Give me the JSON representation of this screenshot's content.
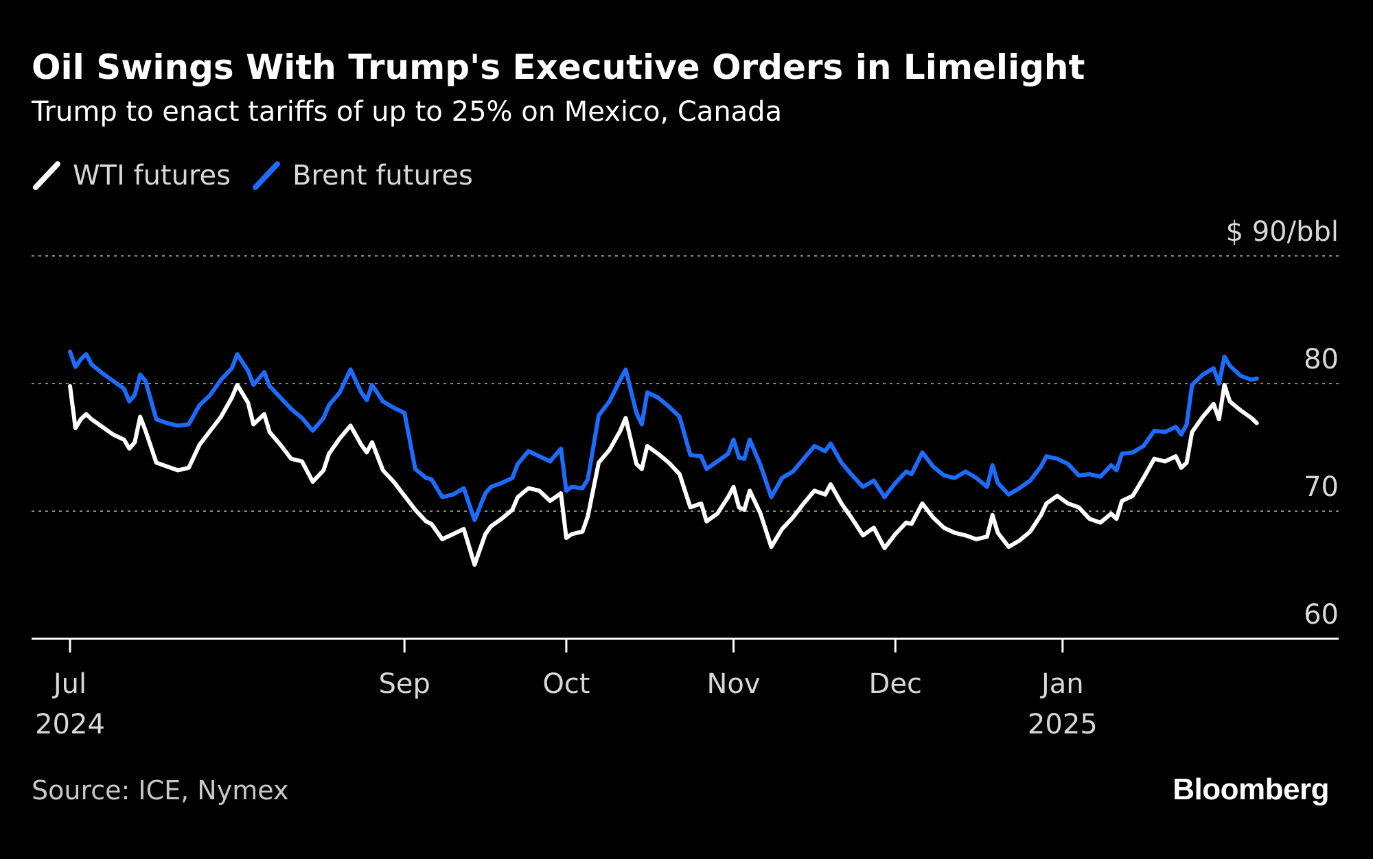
{
  "title": "Oil Swings With Trump's Executive Orders in Limelight",
  "subtitle": "Trump to enact tariffs of up to 25% on Mexico, Canada",
  "source": "Source: ICE, Nymex",
  "brand": "Bloomberg",
  "colors": {
    "background": "#000000",
    "wti": "#ffffff",
    "brent": "#1a6dff",
    "grid": "#888888",
    "axis": "#ffffff"
  },
  "chart_data": {
    "type": "line",
    "title": "Oil Swings With Trump's Executive Orders in Limelight",
    "subtitle": "Trump to enact tariffs of up to 25% on Mexico, Canada",
    "unit_label": "$ 90/bbl",
    "ylim": [
      60,
      90
    ],
    "y_ticks": [
      {
        "value": 90,
        "label": "$ 90/bbl"
      },
      {
        "value": 80,
        "label": "80"
      },
      {
        "value": 70,
        "label": "70"
      },
      {
        "value": 60,
        "label": "60"
      }
    ],
    "xlim": [
      "2024-07-01",
      "2025-02-11"
    ],
    "x_ticks": [
      {
        "date": "2024-07-01",
        "label": "Jul",
        "sublabel": "2024"
      },
      {
        "date": "2024-09-01",
        "label": "Sep",
        "sublabel": ""
      },
      {
        "date": "2024-10-01",
        "label": "Oct",
        "sublabel": ""
      },
      {
        "date": "2024-11-01",
        "label": "Nov",
        "sublabel": ""
      },
      {
        "date": "2024-12-01",
        "label": "Dec",
        "sublabel": ""
      },
      {
        "date": "2025-01-01",
        "label": "Jan",
        "sublabel": "2025"
      }
    ],
    "grid": true,
    "legend_position": "top-left",
    "series": [
      {
        "name": "WTI futures",
        "color": "#ffffff",
        "points": [
          [
            "2024-07-01",
            79.8
          ],
          [
            "2024-07-02",
            76.5
          ],
          [
            "2024-07-03",
            77.2
          ],
          [
            "2024-07-04",
            77.6
          ],
          [
            "2024-07-05",
            77.2
          ],
          [
            "2024-07-07",
            76.6
          ],
          [
            "2024-07-09",
            76.0
          ],
          [
            "2024-07-11",
            75.6
          ],
          [
            "2024-07-12",
            74.9
          ],
          [
            "2024-07-13",
            75.4
          ],
          [
            "2024-07-14",
            77.4
          ],
          [
            "2024-07-15",
            76.3
          ],
          [
            "2024-07-17",
            73.8
          ],
          [
            "2024-07-19",
            73.5
          ],
          [
            "2024-07-21",
            73.2
          ],
          [
            "2024-07-23",
            73.4
          ],
          [
            "2024-07-25",
            75.2
          ],
          [
            "2024-07-27",
            76.3
          ],
          [
            "2024-07-29",
            77.4
          ],
          [
            "2024-07-31",
            78.9
          ],
          [
            "2024-08-01",
            79.9
          ],
          [
            "2024-08-03",
            78.5
          ],
          [
            "2024-08-04",
            76.8
          ],
          [
            "2024-08-06",
            77.6
          ],
          [
            "2024-08-07",
            76.2
          ],
          [
            "2024-08-09",
            75.2
          ],
          [
            "2024-08-11",
            74.1
          ],
          [
            "2024-08-13",
            73.9
          ],
          [
            "2024-08-15",
            72.3
          ],
          [
            "2024-08-17",
            73.2
          ],
          [
            "2024-08-18",
            74.5
          ],
          [
            "2024-08-20",
            75.7
          ],
          [
            "2024-08-22",
            76.7
          ],
          [
            "2024-08-24",
            75.2
          ],
          [
            "2024-08-25",
            74.6
          ],
          [
            "2024-08-26",
            75.4
          ],
          [
            "2024-08-28",
            73.2
          ],
          [
            "2024-08-30",
            72.3
          ],
          [
            "2024-09-01",
            71.2
          ],
          [
            "2024-09-03",
            70.1
          ],
          [
            "2024-09-05",
            69.2
          ],
          [
            "2024-09-06",
            69.0
          ],
          [
            "2024-09-08",
            67.8
          ],
          [
            "2024-09-10",
            68.2
          ],
          [
            "2024-09-12",
            68.6
          ],
          [
            "2024-09-14",
            65.8
          ],
          [
            "2024-09-16",
            68.2
          ],
          [
            "2024-09-17",
            68.8
          ],
          [
            "2024-09-19",
            69.4
          ],
          [
            "2024-09-21",
            70.1
          ],
          [
            "2024-09-22",
            71.1
          ],
          [
            "2024-09-24",
            71.8
          ],
          [
            "2024-09-26",
            71.6
          ],
          [
            "2024-09-28",
            70.8
          ],
          [
            "2024-09-30",
            71.4
          ],
          [
            "2024-10-01",
            67.9
          ],
          [
            "2024-10-02",
            68.2
          ],
          [
            "2024-10-04",
            68.4
          ],
          [
            "2024-10-05",
            69.6
          ],
          [
            "2024-10-07",
            73.8
          ],
          [
            "2024-10-09",
            74.8
          ],
          [
            "2024-10-11",
            76.3
          ],
          [
            "2024-10-12",
            77.3
          ],
          [
            "2024-10-14",
            73.7
          ],
          [
            "2024-10-15",
            73.3
          ],
          [
            "2024-10-16",
            75.1
          ],
          [
            "2024-10-18",
            74.5
          ],
          [
            "2024-10-20",
            73.8
          ],
          [
            "2024-10-22",
            72.9
          ],
          [
            "2024-10-24",
            70.3
          ],
          [
            "2024-10-26",
            70.6
          ],
          [
            "2024-10-27",
            69.2
          ],
          [
            "2024-10-29",
            69.8
          ],
          [
            "2024-10-31",
            71.1
          ],
          [
            "2024-11-01",
            71.9
          ],
          [
            "2024-11-02",
            70.3
          ],
          [
            "2024-11-03",
            70.1
          ],
          [
            "2024-11-04",
            71.6
          ],
          [
            "2024-11-06",
            69.8
          ],
          [
            "2024-11-08",
            67.2
          ],
          [
            "2024-11-10",
            68.6
          ],
          [
            "2024-11-12",
            69.5
          ],
          [
            "2024-11-14",
            70.6
          ],
          [
            "2024-11-16",
            71.6
          ],
          [
            "2024-11-18",
            71.3
          ],
          [
            "2024-11-19",
            72.1
          ],
          [
            "2024-11-21",
            70.6
          ],
          [
            "2024-11-23",
            69.4
          ],
          [
            "2024-11-25",
            68.1
          ],
          [
            "2024-11-27",
            68.7
          ],
          [
            "2024-11-29",
            67.1
          ],
          [
            "2024-12-01",
            68.2
          ],
          [
            "2024-12-03",
            69.1
          ],
          [
            "2024-12-04",
            69.0
          ],
          [
            "2024-12-06",
            70.6
          ],
          [
            "2024-12-08",
            69.5
          ],
          [
            "2024-12-10",
            68.7
          ],
          [
            "2024-12-12",
            68.3
          ],
          [
            "2024-12-14",
            68.1
          ],
          [
            "2024-12-16",
            67.8
          ],
          [
            "2024-12-18",
            68.0
          ],
          [
            "2024-12-19",
            69.7
          ],
          [
            "2024-12-20",
            68.3
          ],
          [
            "2024-12-22",
            67.2
          ],
          [
            "2024-12-24",
            67.7
          ],
          [
            "2024-12-26",
            68.4
          ],
          [
            "2024-12-28",
            69.7
          ],
          [
            "2024-12-29",
            70.6
          ],
          [
            "2024-12-31",
            71.2
          ],
          [
            "2025-01-02",
            70.6
          ],
          [
            "2025-01-04",
            70.3
          ],
          [
            "2025-01-06",
            69.4
          ],
          [
            "2025-01-08",
            69.1
          ],
          [
            "2025-01-10",
            69.8
          ],
          [
            "2025-01-11",
            69.4
          ],
          [
            "2025-01-12",
            70.8
          ],
          [
            "2025-01-14",
            71.2
          ],
          [
            "2025-01-16",
            72.6
          ],
          [
            "2025-01-18",
            74.1
          ],
          [
            "2025-01-20",
            73.9
          ],
          [
            "2025-01-22",
            74.3
          ],
          [
            "2025-01-23",
            73.4
          ],
          [
            "2025-01-24",
            73.8
          ],
          [
            "2025-01-25",
            76.2
          ],
          [
            "2025-01-27",
            77.4
          ],
          [
            "2025-01-29",
            78.4
          ],
          [
            "2025-01-30",
            77.2
          ],
          [
            "2025-01-31",
            79.9
          ],
          [
            "2025-02-01",
            78.6
          ],
          [
            "2025-02-03",
            77.9
          ],
          [
            "2025-02-05",
            77.3
          ],
          [
            "2025-02-06",
            76.9
          ]
        ]
      },
      {
        "name": "Brent futures",
        "color": "#1a6dff",
        "points": [
          [
            "2024-07-01",
            82.5
          ],
          [
            "2024-07-02",
            81.3
          ],
          [
            "2024-07-03",
            81.9
          ],
          [
            "2024-07-04",
            82.3
          ],
          [
            "2024-07-05",
            81.5
          ],
          [
            "2024-07-07",
            80.8
          ],
          [
            "2024-07-09",
            80.2
          ],
          [
            "2024-07-11",
            79.6
          ],
          [
            "2024-07-12",
            78.6
          ],
          [
            "2024-07-13",
            79.1
          ],
          [
            "2024-07-14",
            80.7
          ],
          [
            "2024-07-15",
            80.2
          ],
          [
            "2024-07-17",
            77.2
          ],
          [
            "2024-07-19",
            76.9
          ],
          [
            "2024-07-21",
            76.7
          ],
          [
            "2024-07-23",
            76.8
          ],
          [
            "2024-07-25",
            78.3
          ],
          [
            "2024-07-27",
            79.1
          ],
          [
            "2024-07-29",
            80.3
          ],
          [
            "2024-07-31",
            81.2
          ],
          [
            "2024-08-01",
            82.3
          ],
          [
            "2024-08-03",
            81.0
          ],
          [
            "2024-08-04",
            79.9
          ],
          [
            "2024-08-06",
            80.9
          ],
          [
            "2024-08-07",
            79.8
          ],
          [
            "2024-08-09",
            78.9
          ],
          [
            "2024-08-11",
            78.0
          ],
          [
            "2024-08-13",
            77.3
          ],
          [
            "2024-08-15",
            76.3
          ],
          [
            "2024-08-17",
            77.3
          ],
          [
            "2024-08-18",
            78.3
          ],
          [
            "2024-08-20",
            79.3
          ],
          [
            "2024-08-22",
            81.1
          ],
          [
            "2024-08-24",
            79.3
          ],
          [
            "2024-08-25",
            78.7
          ],
          [
            "2024-08-26",
            79.9
          ],
          [
            "2024-08-28",
            78.6
          ],
          [
            "2024-08-30",
            78.1
          ],
          [
            "2024-09-01",
            77.7
          ],
          [
            "2024-09-03",
            73.3
          ],
          [
            "2024-09-05",
            72.6
          ],
          [
            "2024-09-06",
            72.5
          ],
          [
            "2024-09-08",
            71.1
          ],
          [
            "2024-09-10",
            71.3
          ],
          [
            "2024-09-12",
            71.8
          ],
          [
            "2024-09-14",
            69.3
          ],
          [
            "2024-09-16",
            71.4
          ],
          [
            "2024-09-17",
            71.9
          ],
          [
            "2024-09-19",
            72.2
          ],
          [
            "2024-09-21",
            72.6
          ],
          [
            "2024-09-22",
            73.7
          ],
          [
            "2024-09-24",
            74.7
          ],
          [
            "2024-09-26",
            74.3
          ],
          [
            "2024-09-28",
            73.9
          ],
          [
            "2024-09-30",
            74.9
          ],
          [
            "2024-10-01",
            71.6
          ],
          [
            "2024-10-02",
            71.9
          ],
          [
            "2024-10-04",
            71.8
          ],
          [
            "2024-10-05",
            72.5
          ],
          [
            "2024-10-07",
            77.5
          ],
          [
            "2024-10-09",
            78.6
          ],
          [
            "2024-10-11",
            80.3
          ],
          [
            "2024-10-12",
            81.1
          ],
          [
            "2024-10-14",
            77.7
          ],
          [
            "2024-10-15",
            76.8
          ],
          [
            "2024-10-16",
            79.3
          ],
          [
            "2024-10-18",
            78.9
          ],
          [
            "2024-10-20",
            78.2
          ],
          [
            "2024-10-22",
            77.4
          ],
          [
            "2024-10-24",
            74.4
          ],
          [
            "2024-10-26",
            74.3
          ],
          [
            "2024-10-27",
            73.3
          ],
          [
            "2024-10-29",
            73.9
          ],
          [
            "2024-10-31",
            74.5
          ],
          [
            "2024-11-01",
            75.6
          ],
          [
            "2024-11-02",
            74.2
          ],
          [
            "2024-11-03",
            74.1
          ],
          [
            "2024-11-04",
            75.6
          ],
          [
            "2024-11-06",
            73.6
          ],
          [
            "2024-11-08",
            71.1
          ],
          [
            "2024-11-10",
            72.6
          ],
          [
            "2024-11-12",
            73.1
          ],
          [
            "2024-11-14",
            74.1
          ],
          [
            "2024-11-16",
            75.1
          ],
          [
            "2024-11-18",
            74.7
          ],
          [
            "2024-11-19",
            75.3
          ],
          [
            "2024-11-21",
            73.8
          ],
          [
            "2024-11-23",
            72.8
          ],
          [
            "2024-11-25",
            71.9
          ],
          [
            "2024-11-27",
            72.4
          ],
          [
            "2024-11-29",
            71.1
          ],
          [
            "2024-12-01",
            72.2
          ],
          [
            "2024-12-03",
            73.1
          ],
          [
            "2024-12-04",
            72.9
          ],
          [
            "2024-12-06",
            74.6
          ],
          [
            "2024-12-08",
            73.5
          ],
          [
            "2024-12-10",
            72.8
          ],
          [
            "2024-12-12",
            72.6
          ],
          [
            "2024-12-14",
            73.1
          ],
          [
            "2024-12-16",
            72.6
          ],
          [
            "2024-12-18",
            71.9
          ],
          [
            "2024-12-19",
            73.6
          ],
          [
            "2024-12-20",
            72.2
          ],
          [
            "2024-12-22",
            71.3
          ],
          [
            "2024-12-24",
            71.8
          ],
          [
            "2024-12-26",
            72.4
          ],
          [
            "2024-12-28",
            73.5
          ],
          [
            "2024-12-29",
            74.3
          ],
          [
            "2024-12-31",
            74.1
          ],
          [
            "2025-01-02",
            73.7
          ],
          [
            "2025-01-04",
            72.8
          ],
          [
            "2025-01-06",
            72.9
          ],
          [
            "2025-01-08",
            72.7
          ],
          [
            "2025-01-10",
            73.6
          ],
          [
            "2025-01-11",
            73.2
          ],
          [
            "2025-01-12",
            74.5
          ],
          [
            "2025-01-14",
            74.6
          ],
          [
            "2025-01-16",
            75.1
          ],
          [
            "2025-01-18",
            76.3
          ],
          [
            "2025-01-20",
            76.2
          ],
          [
            "2025-01-22",
            76.6
          ],
          [
            "2025-01-23",
            76.0
          ],
          [
            "2025-01-24",
            76.8
          ],
          [
            "2025-01-25",
            79.9
          ],
          [
            "2025-01-27",
            80.7
          ],
          [
            "2025-01-29",
            81.2
          ],
          [
            "2025-01-30",
            80.0
          ],
          [
            "2025-01-31",
            82.1
          ],
          [
            "2025-02-01",
            81.4
          ],
          [
            "2025-02-03",
            80.6
          ],
          [
            "2025-02-05",
            80.3
          ],
          [
            "2025-02-06",
            80.4
          ]
        ]
      }
    ]
  }
}
